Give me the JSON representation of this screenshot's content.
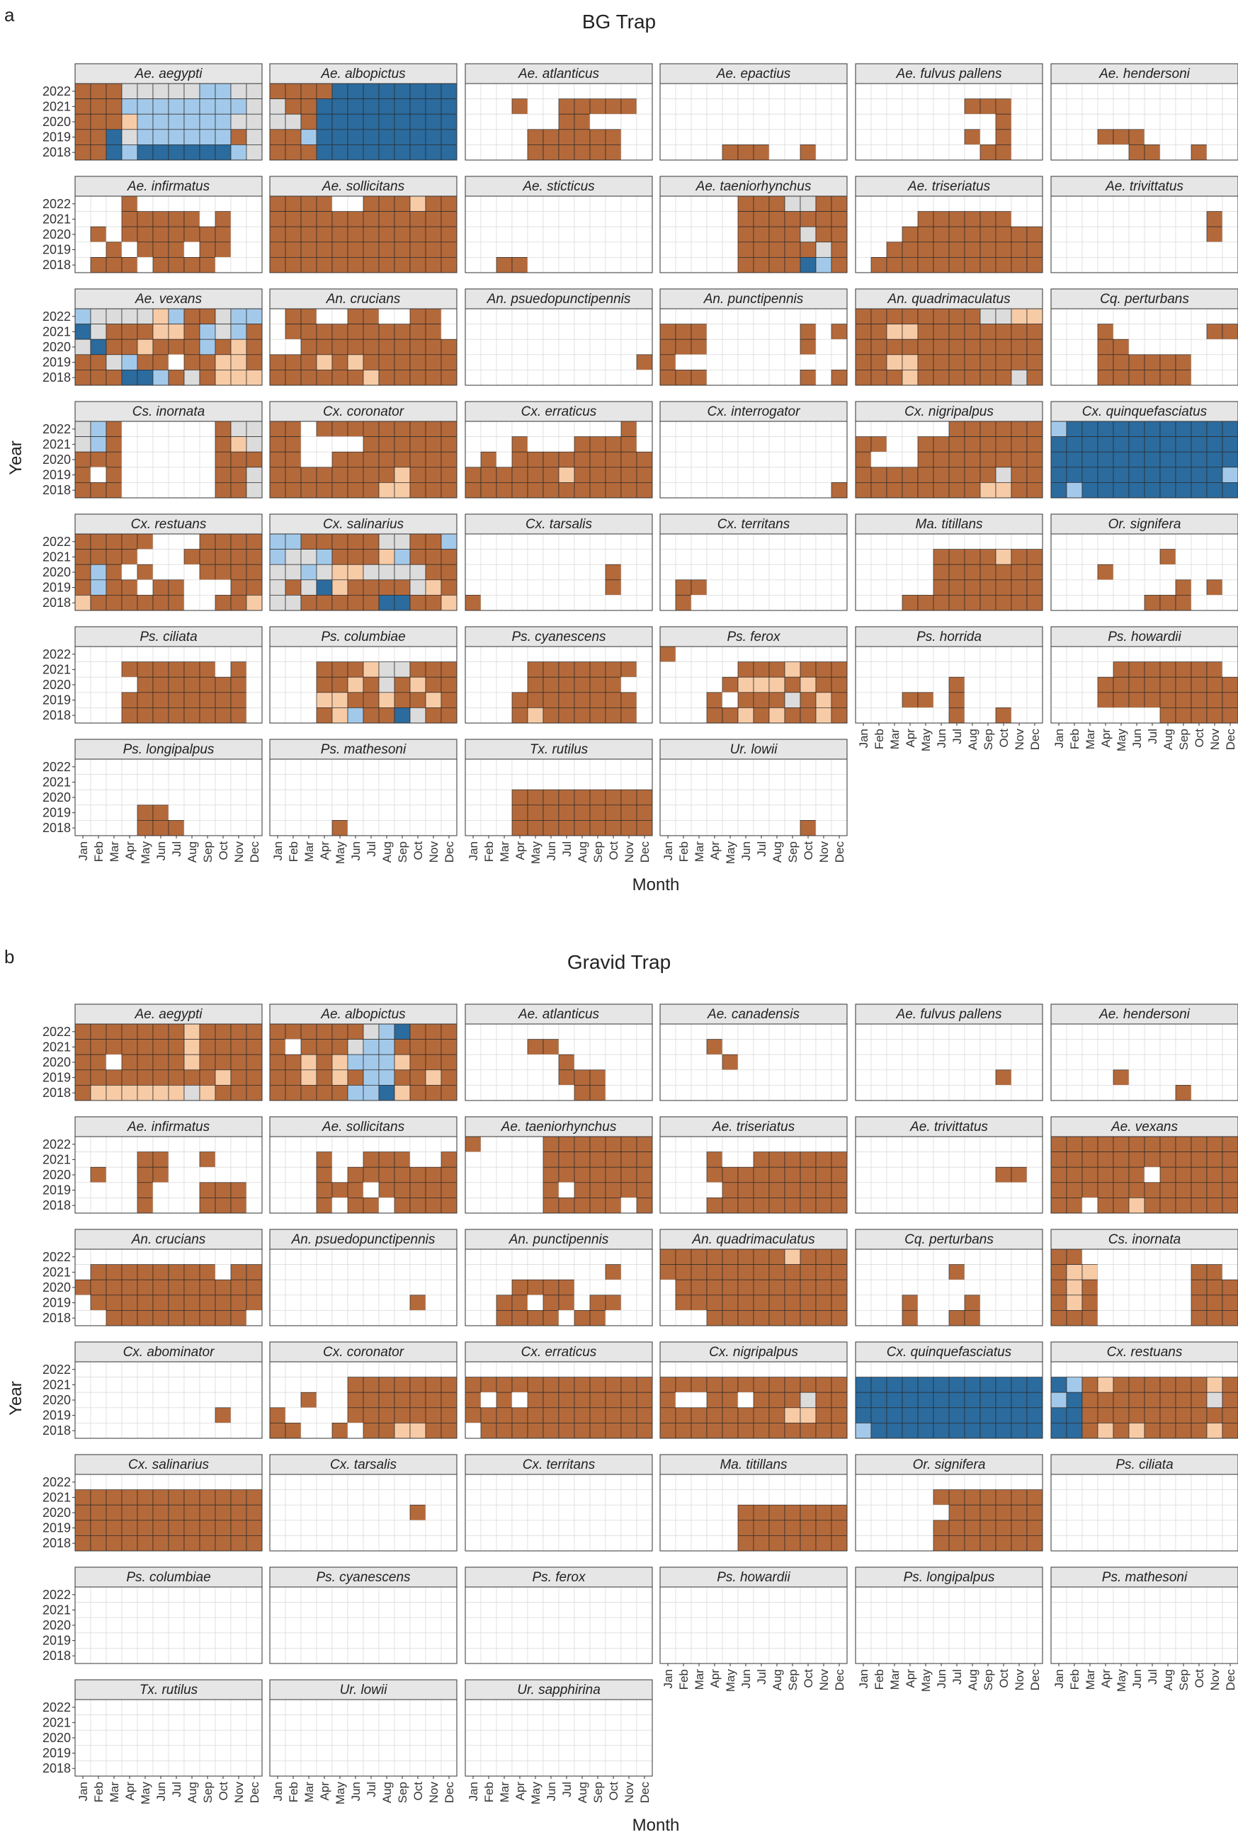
{
  "chart_data": [
    {
      "type": "heatmap",
      "panel_label": "a",
      "title": "BG Trap",
      "xlabel": "Month",
      "ylabel": "Year",
      "years": [
        "2022",
        "2021",
        "2020",
        "2019",
        "2018"
      ],
      "months": [
        "Jan",
        "Feb",
        "Mar",
        "Apr",
        "May",
        "Jun",
        "Jul",
        "Aug",
        "Sep",
        "Oct",
        "Nov",
        "Dec"
      ],
      "color_scale": {
        "1": "#b4693a",
        "2": "#f7cba6",
        "3": "#dcdcdc",
        "4": "#a3c9ea",
        "5": "#2b6b9e"
      },
      "species": [
        {
          "name": "Ae. aegypti",
          "rows": [
            "111333334433",
            "111444444443",
            "111244444433",
            "115344444413",
            "115455555543"
          ]
        },
        {
          "name": "Ae. albopictus",
          "rows": [
            "111155555555",
            "311555555555",
            "331555555555",
            "114555555555",
            "111555555555"
          ]
        },
        {
          "name": "Ae. atlanticus",
          "rows": [
            "000000000000",
            "000100111110",
            "000000110000",
            "000011111100",
            "000011111100"
          ]
        },
        {
          "name": "Ae. epactius",
          "rows": [
            "000000000000",
            "000000000000",
            "000000000000",
            "000000000000",
            "000011100100"
          ]
        },
        {
          "name": "Ae. fulvus pallens",
          "rows": [
            "000000000000",
            "000000011100",
            "000000000100",
            "000000010100",
            "000000001100"
          ]
        },
        {
          "name": "Ae. hendersoni",
          "rows": [
            "000000000000",
            "000000000000",
            "000000000000",
            "000111000000",
            "000001100100"
          ]
        },
        {
          "name": "Ae. infirmatus",
          "rows": [
            "000100000000",
            "000111110100",
            "010111111100",
            "001011101100",
            "011101111000"
          ]
        },
        {
          "name": "Ae. sollicitans",
          "rows": [
            "111100111211",
            "111111111111",
            "111111111111",
            "111111111111",
            "111111111111"
          ]
        },
        {
          "name": "Ae. sticticus",
          "rows": [
            "000000000000",
            "000000000000",
            "000000000000",
            "000000000000",
            "001100000000"
          ]
        },
        {
          "name": "Ae. taeniorhynchus",
          "rows": [
            "000001113311",
            "000001111111",
            "000001111311",
            "000001111131",
            "000001111541"
          ]
        },
        {
          "name": "Ae. triseriatus",
          "rows": [
            "000000000000",
            "000011111100",
            "000111111111",
            "001111111111",
            "011111111111"
          ]
        },
        {
          "name": "Ae. trivittatus",
          "rows": [
            "000000000000",
            "000000000010",
            "000000000010",
            "000000000000",
            "000000000000"
          ]
        },
        {
          "name": "Ae. vexans",
          "rows": [
            "433332411344",
            "531112214341",
            "351121114121",
            "113411011221",
            "111554131222"
          ]
        },
        {
          "name": "An. crucians",
          "rows": [
            "011001100110",
            "011111111110",
            "001111111111",
            "111212111111",
            "111111211111"
          ]
        },
        {
          "name": "An. psuedopunctipennis",
          "rows": [
            "000000000000",
            "000000000000",
            "000000000000",
            "000000000001",
            "000000000000"
          ]
        },
        {
          "name": "An. punctipennis",
          "rows": [
            "000000000000",
            "111000000101",
            "111000000100",
            "100000000000",
            "111000000101"
          ]
        },
        {
          "name": "An. quadrimaculatus",
          "rows": [
            "111111113322",
            "112211111111",
            "111111111111",
            "112211111111",
            "111211111131"
          ]
        },
        {
          "name": "Cq. perturbans",
          "rows": [
            "000000000000",
            "000100000011",
            "000110000000",
            "000111111000",
            "000111111000"
          ]
        },
        {
          "name": "Cs. inornata",
          "rows": [
            "341000000133",
            "341000000123",
            "111000000111",
            "101000000113",
            "111000000113"
          ]
        },
        {
          "name": "Cx. coronator",
          "rows": [
            "110111111111",
            "110000111111",
            "110011111111",
            "111111112111",
            "111111122111"
          ]
        },
        {
          "name": "Cx. erraticus",
          "rows": [
            "000000000010",
            "000100011110",
            "010111111111",
            "111111211111",
            "111111111111"
          ]
        },
        {
          "name": "Cx. interrogator",
          "rows": [
            "000000000000",
            "000000000000",
            "000000000000",
            "000000000000",
            "000000000001"
          ]
        },
        {
          "name": "Cx. nigripalpus",
          "rows": [
            "000000111111",
            "110011111111",
            "100011111111",
            "111111111311",
            "111111112211"
          ]
        },
        {
          "name": "Cx. quinquefasciatus",
          "rows": [
            "455555555555",
            "555555555555",
            "555555555555",
            "555555555554",
            "545555555555"
          ]
        },
        {
          "name": "Cx. restuans",
          "rows": [
            "111110001111",
            "111100011111",
            "141010001111",
            "141101100011",
            "211111100112"
          ]
        },
        {
          "name": "Cx. salinarius",
          "rows": [
            "441111133114",
            "433411124111",
            "334322333311",
            "313521111321",
            "331111155112"
          ]
        },
        {
          "name": "Cx. tarsalis",
          "rows": [
            "000000000000",
            "000000000000",
            "000000000100",
            "000000000100",
            "100000000000"
          ]
        },
        {
          "name": "Cx. territans",
          "rows": [
            "000000000000",
            "000000000000",
            "000000000000",
            "011000000000",
            "010000000000"
          ]
        },
        {
          "name": "Ma. titillans",
          "rows": [
            "000000000000",
            "000001111211",
            "000001111111",
            "000001111111",
            "000111111111"
          ]
        },
        {
          "name": "Or. signifera",
          "rows": [
            "000000000000",
            "000000010000",
            "000100000000",
            "000000001010",
            "000000111000"
          ]
        },
        {
          "name": "Ps. ciliata",
          "rows": [
            "000000000000",
            "000111111010",
            "000011111110",
            "000111111110",
            "000111111110"
          ]
        },
        {
          "name": "Ps. columbiae",
          "rows": [
            "000000000000",
            "000111233111",
            "000112131211",
            "000221121121",
            "000124115311"
          ]
        },
        {
          "name": "Ps. cyanescens",
          "rows": [
            "000000000000",
            "000011111110",
            "000011111100",
            "000111111110",
            "000121111110"
          ]
        },
        {
          "name": "Ps. ferox",
          "rows": [
            "100000000000",
            "000001112111",
            "000012221211",
            "000101113121",
            "000112121121"
          ]
        },
        {
          "name": "Ps. horrida",
          "rows": [
            "000000000000",
            "000000000000",
            "000000100000",
            "000110100000",
            "000000100100"
          ]
        },
        {
          "name": "Ps. howardii",
          "rows": [
            "000000000000",
            "000011111110",
            "000111111111",
            "000111111111",
            "000000011111"
          ]
        },
        {
          "name": "Ps. longipalpus",
          "rows": [
            "000000000000",
            "000000000000",
            "000000000000",
            "000011000000",
            "000011100000"
          ]
        },
        {
          "name": "Ps. mathesoni",
          "rows": [
            "000000000000",
            "000000000000",
            "000000000000",
            "000000000000",
            "000010000000"
          ]
        },
        {
          "name": "Tx. rutilus",
          "rows": [
            "000000000000",
            "000000000000",
            "000111111111",
            "000111111111",
            "000111111111"
          ]
        },
        {
          "name": "Ur. lowii",
          "rows": [
            "000000000000",
            "000000000000",
            "000000000000",
            "000000000000",
            "000000000100"
          ]
        }
      ]
    },
    {
      "type": "heatmap",
      "panel_label": "b",
      "title": "Gravid Trap",
      "xlabel": "Month",
      "ylabel": "Year",
      "years": [
        "2022",
        "2021",
        "2020",
        "2019",
        "2018"
      ],
      "months": [
        "Jan",
        "Feb",
        "Mar",
        "Apr",
        "May",
        "Jun",
        "Jul",
        "Aug",
        "Sep",
        "Oct",
        "Nov",
        "Dec"
      ],
      "color_scale": {
        "1": "#b4693a",
        "2": "#f7cba6",
        "3": "#dcdcdc",
        "4": "#a3c9ea",
        "5": "#2b6b9e"
      },
      "species": [
        {
          "name": "Ae. aegypti",
          "rows": [
            "111111121111",
            "111111121111",
            "110111121111",
            "111111111211",
            "122222232111"
          ]
        },
        {
          "name": "Ae. albopictus",
          "rows": [
            "111111345111",
            "101113441111",
            "112124442111",
            "112121441121",
            "111114452111"
          ]
        },
        {
          "name": "Ae. atlanticus",
          "rows": [
            "000000000000",
            "000011000000",
            "000000100000",
            "000000111000",
            "000000011000"
          ]
        },
        {
          "name": "Ae. canadensis",
          "rows": [
            "000000000000",
            "000100000000",
            "000010000000",
            "000000000000",
            "000000000000"
          ]
        },
        {
          "name": "Ae. fulvus pallens",
          "rows": [
            "000000000000",
            "000000000000",
            "000000000000",
            "000000000100",
            "000000000000"
          ]
        },
        {
          "name": "Ae. hendersoni",
          "rows": [
            "000000000000",
            "000000000000",
            "000000000000",
            "000010000000",
            "000000001000"
          ]
        },
        {
          "name": "Ae. infirmatus",
          "rows": [
            "000000000000",
            "000011001000",
            "010011000000",
            "000010001110",
            "000010001110"
          ]
        },
        {
          "name": "Ae. sollicitans",
          "rows": [
            "000000000000",
            "000100111001",
            "000101111111",
            "000111011111",
            "000101101111"
          ]
        },
        {
          "name": "Ae. taeniorhynchus",
          "rows": [
            "100001111111",
            "000001111111",
            "000001111111",
            "000001011111",
            "000001111101"
          ]
        },
        {
          "name": "Ae. triseriatus",
          "rows": [
            "000000000000",
            "000100111111",
            "000111111111",
            "000011111111",
            "000111111111"
          ]
        },
        {
          "name": "Ae. trivittatus",
          "rows": [
            "000000000000",
            "000000000000",
            "000000000110",
            "000000000000",
            "000000000000"
          ]
        },
        {
          "name": "Ae. vexans",
          "rows": [
            "111111111111",
            "111111111111",
            "111111011111",
            "111111111111",
            "110112111111"
          ]
        },
        {
          "name": "An. crucians",
          "rows": [
            "000000000000",
            "011111111011",
            "111111111111",
            "011111111111",
            "001111111110"
          ]
        },
        {
          "name": "An. psuedopunctipennis",
          "rows": [
            "000000000000",
            "000000000000",
            "000000000000",
            "000000000100",
            "000000000000"
          ]
        },
        {
          "name": "An. punctipennis",
          "rows": [
            "000000000000",
            "000000000100",
            "000111100000",
            "001101101100",
            "001111011000"
          ]
        },
        {
          "name": "An. quadrimaculatus",
          "rows": [
            "111111112111",
            "111111111111",
            "011111111111",
            "011111111111",
            "000111111111"
          ]
        },
        {
          "name": "Cq. perturbans",
          "rows": [
            "000000000000",
            "000000100000",
            "000000000000",
            "000100010000",
            "000100110000"
          ]
        },
        {
          "name": "Cs. inornata",
          "rows": [
            "110000000000",
            "122000000110",
            "121000000111",
            "121000000111",
            "111000000111"
          ]
        },
        {
          "name": "Cx. abominator",
          "rows": [
            "000000000000",
            "000000000000",
            "000000000000",
            "000000000100",
            "000000000000"
          ]
        },
        {
          "name": "Cx. coronator",
          "rows": [
            "000000000000",
            "000001111111",
            "001001111111",
            "100001111111",
            "110010112211"
          ]
        },
        {
          "name": "Cx. erraticus",
          "rows": [
            "000000000000",
            "111111111111",
            "101011111111",
            "111111111111",
            "011111111111"
          ]
        },
        {
          "name": "Cx. nigripalpus",
          "rows": [
            "000000000000",
            "111111111111",
            "100110111311",
            "111111112211",
            "111111111111"
          ]
        },
        {
          "name": "Cx. quinquefasciatus",
          "rows": [
            "000000000000",
            "555555555555",
            "555555555555",
            "555555555555",
            "455555555555"
          ]
        },
        {
          "name": "Cx. restuans",
          "rows": [
            "000000000000",
            "541211111121",
            "451111111131",
            "551111111111",
            "551212111121"
          ]
        },
        {
          "name": "Cx. salinarius",
          "rows": [
            "000000000000",
            "111111111111",
            "111111111111",
            "111111111111",
            "111111111111"
          ]
        },
        {
          "name": "Cx. tarsalis",
          "rows": [
            "000000000000",
            "000000000000",
            "000000000100",
            "000000000000",
            "000000000000"
          ]
        },
        {
          "name": "Cx. territans",
          "rows": [
            "000000000000",
            "000000000000",
            "000000000000",
            "000000000000",
            "000000000000"
          ]
        },
        {
          "name": "Ma. titillans",
          "rows": [
            "000000000000",
            "000000000000",
            "000001111111",
            "000001111111",
            "000001111111"
          ]
        },
        {
          "name": "Or. signifera",
          "rows": [
            "000000000000",
            "000001111111",
            "000000111111",
            "000001111111",
            "000001111111"
          ]
        },
        {
          "name": "Ps. ciliata",
          "rows": [
            "000000000000",
            "000000000000",
            "000000000000",
            "000000000000",
            "000000000000"
          ]
        },
        {
          "name": "Ps. columbiae",
          "rows": [
            "000000000000",
            "000000000000",
            "000000000000",
            "000000000000",
            "000000000000"
          ]
        },
        {
          "name": "Ps. cyanescens",
          "rows": [
            "000000000000",
            "000000000000",
            "000000000000",
            "000000000000",
            "000000000000"
          ]
        },
        {
          "name": "Ps. ferox",
          "rows": [
            "000000000000",
            "000000000000",
            "000000000000",
            "000000000000",
            "000000000000"
          ]
        },
        {
          "name": "Ps. howardii",
          "rows": [
            "000000000000",
            "000000000000",
            "000000000000",
            "000000000000",
            "000000000000"
          ]
        },
        {
          "name": "Ps. longipalpus",
          "rows": [
            "000000000000",
            "000000000000",
            "000000000000",
            "000000000000",
            "000000000000"
          ]
        },
        {
          "name": "Ps. mathesoni",
          "rows": [
            "000000000000",
            "000000000000",
            "000000000000",
            "000000000000",
            "000000000000"
          ]
        },
        {
          "name": "Tx. rutilus",
          "rows": [
            "000000000000",
            "000000000000",
            "000000000000",
            "000000000000",
            "000000000000"
          ]
        },
        {
          "name": "Ur. lowii",
          "rows": [
            "000000000000",
            "000000000000",
            "000000000000",
            "000000000000",
            "000000000000"
          ]
        },
        {
          "name": "Ur. sapphirina",
          "rows": [
            "000000000000",
            "000000000000",
            "000000000000",
            "000000000000",
            "000000000000"
          ]
        }
      ]
    }
  ]
}
